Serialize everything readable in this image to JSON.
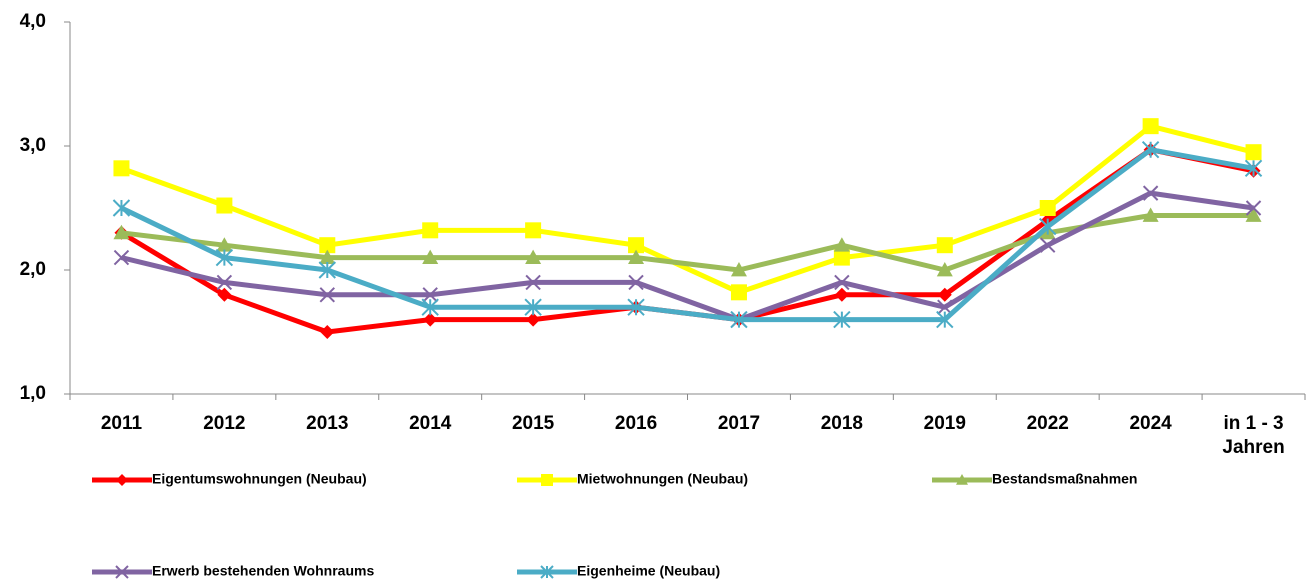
{
  "chart_data": {
    "type": "line",
    "categories": [
      "2011",
      "2012",
      "2013",
      "2014",
      "2015",
      "2016",
      "2017",
      "2018",
      "2019",
      "2022",
      "2024",
      "in 1 - 3 Jahren"
    ],
    "ylim": [
      1,
      4
    ],
    "yticks": [
      {
        "value": 1,
        "label": "1,0"
      },
      {
        "value": 2,
        "label": "2,0"
      },
      {
        "value": 3,
        "label": "3,0"
      },
      {
        "value": 4,
        "label": "4,0"
      }
    ],
    "grid": false,
    "series": [
      {
        "name": "Eigentumswohnungen (Neubau)",
        "color": "#ff0000",
        "marker": "diamond",
        "values": [
          2.3,
          1.8,
          1.5,
          1.6,
          1.6,
          1.7,
          1.6,
          1.8,
          1.8,
          2.4,
          2.97,
          2.8
        ]
      },
      {
        "name": "Mietwohnungen (Neubau)",
        "color": "#ffff00",
        "marker": "square",
        "values": [
          2.82,
          2.52,
          2.2,
          2.32,
          2.32,
          2.2,
          1.82,
          2.1,
          2.2,
          2.5,
          3.16,
          2.95
        ]
      },
      {
        "name": "Bestandsmaßnahmen",
        "color": "#9bbb59",
        "marker": "triangle",
        "values": [
          2.3,
          2.2,
          2.1,
          2.1,
          2.1,
          2.1,
          2.0,
          2.2,
          2.0,
          2.3,
          2.44,
          2.44
        ]
      },
      {
        "name": "Erwerb bestehenden Wohnraums",
        "color": "#8064a2",
        "marker": "x",
        "values": [
          2.1,
          1.9,
          1.8,
          1.8,
          1.9,
          1.9,
          1.6,
          1.9,
          1.7,
          2.2,
          2.62,
          2.5
        ]
      },
      {
        "name": "Eigenheime (Neubau)",
        "color": "#4bacc6",
        "marker": "asterisk",
        "values": [
          2.5,
          2.1,
          2.0,
          1.7,
          1.7,
          1.7,
          1.6,
          1.6,
          1.6,
          2.35,
          2.97,
          2.82
        ]
      }
    ]
  }
}
